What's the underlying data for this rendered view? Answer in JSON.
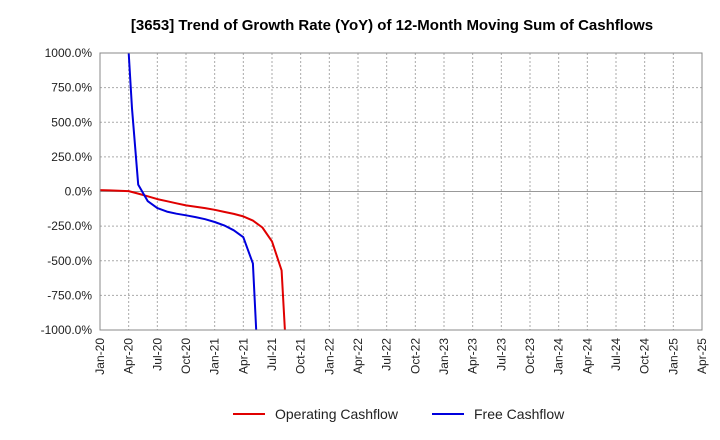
{
  "chart_data": {
    "type": "line",
    "title": "[3653]  Trend of Growth Rate (YoY) of 12-Month Moving Sum of Cashflows",
    "xlabel": "",
    "ylabel": "",
    "x_ticks": [
      "Jan-20",
      "Apr-20",
      "Jul-20",
      "Oct-20",
      "Jan-21",
      "Apr-21",
      "Jul-21",
      "Oct-21",
      "Jan-22",
      "Apr-22",
      "Jul-22",
      "Oct-22",
      "Jan-23",
      "Apr-23",
      "Jul-23",
      "Oct-23",
      "Jan-24",
      "Apr-24",
      "Jul-24",
      "Oct-24",
      "Jan-25",
      "Apr-25"
    ],
    "y_ticks": [
      1000,
      750,
      500,
      250,
      0,
      -250,
      -500,
      -750,
      -1000
    ],
    "y_tick_labels": [
      "1000.0%",
      "750.0%",
      "500.0%",
      "250.0%",
      "0.0%",
      "-250.0%",
      "-500.0%",
      "-750.0%",
      "-1000.0%"
    ],
    "ylim": [
      -1000,
      1000
    ],
    "grid": true,
    "legend_position": "bottom",
    "series": [
      {
        "name": "Operating Cashflow",
        "color": "#e00000",
        "points": [
          [
            "Jan-20",
            10
          ],
          [
            "Feb-20",
            8
          ],
          [
            "Mar-20",
            6
          ],
          [
            "Apr-20",
            3
          ],
          [
            "May-20",
            -15
          ],
          [
            "Jun-20",
            -35
          ],
          [
            "Jul-20",
            -55
          ],
          [
            "Aug-20",
            -70
          ],
          [
            "Sep-20",
            -85
          ],
          [
            "Oct-20",
            -100
          ],
          [
            "Nov-20",
            -110
          ],
          [
            "Dec-20",
            -120
          ],
          [
            "Jan-21",
            -132
          ],
          [
            "Feb-21",
            -147
          ],
          [
            "Mar-21",
            -162
          ],
          [
            "Apr-21",
            -180
          ],
          [
            "May-21",
            -210
          ],
          [
            "Jun-21",
            -260
          ],
          [
            "Jul-21",
            -360
          ],
          [
            "Aug-21",
            -570
          ],
          [
            "Aug-21b",
            -1000
          ]
        ]
      },
      {
        "name": "Free Cashflow",
        "color": "#0000dd",
        "points": [
          [
            "Apr-20",
            1000
          ],
          [
            "Apr-20b",
            600
          ],
          [
            "May-20",
            50
          ],
          [
            "Jun-20",
            -70
          ],
          [
            "Jul-20",
            -120
          ],
          [
            "Aug-20",
            -145
          ],
          [
            "Sep-20",
            -160
          ],
          [
            "Oct-20",
            -172
          ],
          [
            "Nov-20",
            -185
          ],
          [
            "Dec-20",
            -200
          ],
          [
            "Jan-21",
            -220
          ],
          [
            "Feb-21",
            -245
          ],
          [
            "Mar-21",
            -280
          ],
          [
            "Apr-21",
            -330
          ],
          [
            "May-21",
            -520
          ],
          [
            "May-21b",
            -1000
          ]
        ]
      }
    ]
  }
}
